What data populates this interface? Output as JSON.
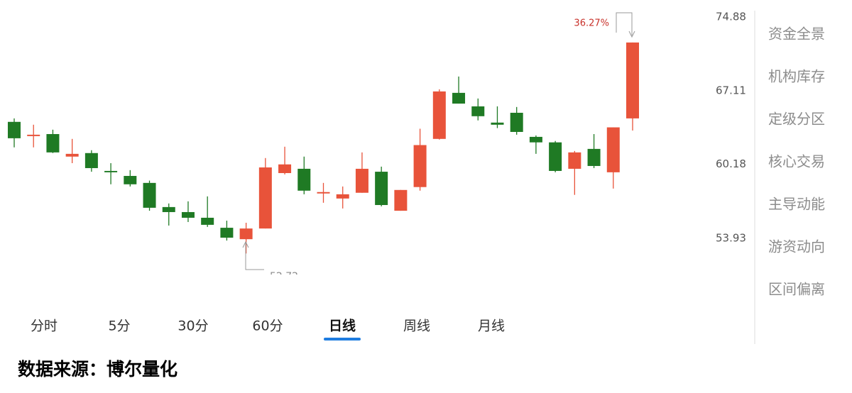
{
  "chart_data": {
    "type": "candlestick",
    "open": [
      64.09,
      62.75,
      62.94,
      60.87,
      61.19,
      59.59,
      59.15,
      58.54,
      56.48,
      56.06,
      55.59,
      54.77,
      53.85,
      54.71,
      59.4,
      59.78,
      57.63,
      57.2,
      57.69,
      59.52,
      56.17,
      58.18,
      62.49,
      66.91,
      65.58,
      64.02,
      64.96,
      62.68,
      62.17,
      59.78,
      61.57,
      59.47,
      64.42
    ],
    "high": [
      64.42,
      63.82,
      63.35,
      62.49,
      61.45,
      60.28,
      59.66,
      58.74,
      56.78,
      56.96,
      57.38,
      55.35,
      55.18,
      60.74,
      61.77,
      60.87,
      58.54,
      58.23,
      61.25,
      59.97,
      57.93,
      63.44,
      67.26,
      68.55,
      66.35,
      65.58,
      65.52,
      62.81,
      62.3,
      61.38,
      62.94,
      63.57,
      72.1
    ],
    "low": [
      61.71,
      61.71,
      61.19,
      60.28,
      59.52,
      58.42,
      58.23,
      56.17,
      54.95,
      55.24,
      54.84,
      53.74,
      52.72,
      54.71,
      59.28,
      57.56,
      56.84,
      56.36,
      57.69,
      56.54,
      56.17,
      57.87,
      62.43,
      65.85,
      64.23,
      63.5,
      62.88,
      61.12,
      59.47,
      57.51,
      59.84,
      58.05,
      63.27
    ],
    "close": [
      62.55,
      62.88,
      61.25,
      61.12,
      59.84,
      59.47,
      58.42,
      56.42,
      56.06,
      55.59,
      55.01,
      53.97,
      54.71,
      59.9,
      60.17,
      57.87,
      57.75,
      57.56,
      59.78,
      56.65,
      57.93,
      61.92,
      67.05,
      65.85,
      64.63,
      63.82,
      63.14,
      62.17,
      59.59,
      61.25,
      60.03,
      63.57,
      72.1
    ],
    "up_color": "#e8533a",
    "down_color": "#1f7a24",
    "log_scale": true,
    "grid": false,
    "ylim": [
      51.26,
      75.67
    ],
    "yticks": [
      53.93,
      60.18,
      67.11,
      74.88
    ],
    "max_annotation": "36.27%"
  },
  "tabs": [
    "分时",
    "5分",
    "30分",
    "60分",
    "日线",
    "周线",
    "月线"
  ],
  "selected_tab": 4,
  "side_menu": [
    "资金全景",
    "机构库存",
    "定级分区",
    "核心交易",
    "主导动能",
    "游资动向",
    "区间偏离"
  ],
  "footer": "数据来源：博尔量化"
}
